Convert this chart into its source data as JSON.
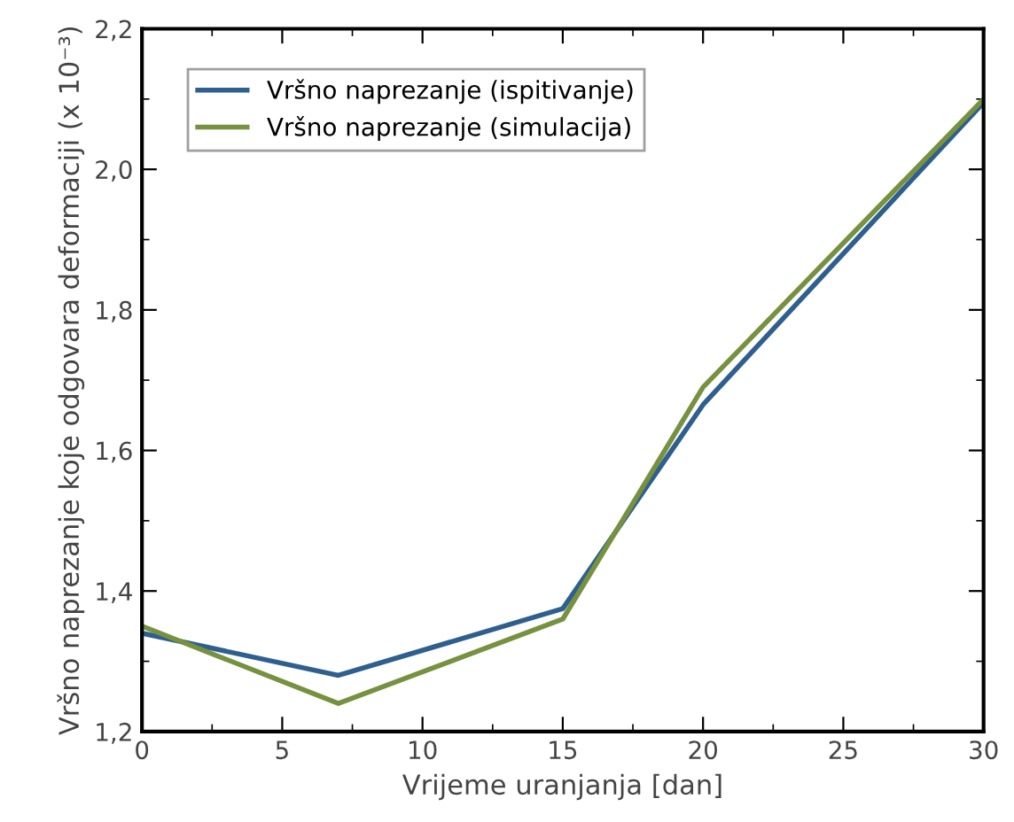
{
  "chart_data": {
    "type": "line",
    "xlabel": "Vrijeme uranjanja [dan]",
    "ylabel": "Vršno naprezanje koje odgovara deformaciji (x 10⁻³)",
    "x": [
      0,
      7,
      15,
      20,
      30
    ],
    "series": [
      {
        "name": "Vršno naprezanje (ispitivanje)",
        "color": "#2f5f8f",
        "values": [
          1.34,
          1.28,
          1.375,
          1.665,
          2.095
        ]
      },
      {
        "name": "Vršno naprezanje (simulacija)",
        "color": "#76913f",
        "values": [
          1.35,
          1.24,
          1.36,
          1.69,
          2.1
        ]
      }
    ],
    "xlim": [
      0,
      30
    ],
    "xticks": [
      0,
      5,
      10,
      15,
      20,
      25,
      30
    ],
    "ylim": [
      1.2,
      2.2
    ],
    "yticks": [
      {
        "value": 1.2,
        "label": "1,2"
      },
      {
        "value": 1.4,
        "label": "1,4"
      },
      {
        "value": 1.6,
        "label": "1,6"
      },
      {
        "value": 1.8,
        "label": "1,8"
      },
      {
        "value": 2.0,
        "label": "2,0"
      },
      {
        "value": 2.2,
        "label": "2,2"
      }
    ],
    "grid": false,
    "legend": "top left",
    "marker": "none",
    "line_style": "solid"
  }
}
